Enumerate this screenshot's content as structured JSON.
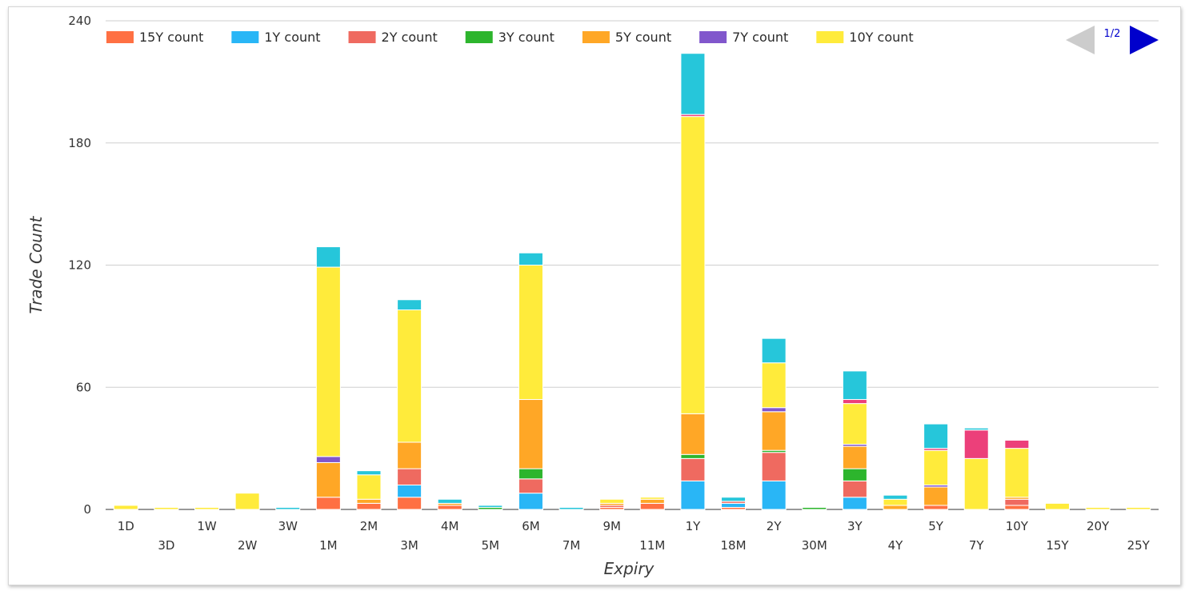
{
  "chart_data": {
    "type": "bar",
    "stacked": true,
    "title": "",
    "xlabel": "Expiry",
    "ylabel": "Trade Count",
    "ylim": [
      0,
      240
    ],
    "yticks": [
      0,
      60,
      120,
      180,
      240
    ],
    "grid": true,
    "legend_position": "top",
    "pager": {
      "label": "1/2",
      "prev_color": "#cccccc",
      "next_color": "#0000cc"
    },
    "categories": [
      "1D",
      "3D",
      "1W",
      "2W",
      "3W",
      "1M",
      "2M",
      "3M",
      "4M",
      "5M",
      "6M",
      "7M",
      "9M",
      "11M",
      "1Y",
      "18M",
      "2Y",
      "30M",
      "3Y",
      "4Y",
      "5Y",
      "7Y",
      "10Y",
      "15Y",
      "20Y",
      "25Y"
    ],
    "series": [
      {
        "name": "15Y count",
        "color": "#ff7043",
        "legend": true,
        "values": [
          0,
          0,
          0,
          0,
          0,
          6,
          3,
          6,
          2,
          0,
          0,
          0,
          1,
          3,
          0,
          1,
          0,
          0,
          0,
          0,
          2,
          0,
          2,
          0,
          0,
          0
        ]
      },
      {
        "name": "1Y count",
        "color": "#29b6f6",
        "legend": true,
        "values": [
          0,
          0,
          0,
          0,
          0,
          0,
          0,
          6,
          0,
          0,
          8,
          0,
          0,
          0,
          14,
          2,
          14,
          0,
          6,
          0,
          0,
          0,
          0,
          0,
          0,
          0
        ]
      },
      {
        "name": "2Y count",
        "color": "#ef6a60",
        "legend": true,
        "values": [
          0,
          0,
          0,
          0,
          0,
          0,
          0,
          8,
          0,
          0,
          7,
          0,
          1,
          0,
          11,
          1,
          14,
          0,
          8,
          0,
          0,
          0,
          3,
          0,
          0,
          0
        ]
      },
      {
        "name": "3Y count",
        "color": "#2db52d",
        "legend": true,
        "values": [
          0,
          0,
          0,
          0,
          0,
          0,
          0,
          0,
          0,
          1,
          5,
          0,
          0,
          0,
          2,
          0,
          1,
          1,
          6,
          0,
          0,
          0,
          0,
          0,
          0,
          0
        ]
      },
      {
        "name": "5Y count",
        "color": "#ffa726",
        "legend": true,
        "values": [
          0,
          0,
          0,
          0,
          0,
          17,
          2,
          13,
          1,
          0,
          34,
          0,
          1,
          2,
          20,
          0,
          19,
          0,
          11,
          2,
          9,
          0,
          1,
          0,
          0,
          0
        ]
      },
      {
        "name": "7Y count",
        "color": "#8157cc",
        "legend": true,
        "values": [
          0,
          0,
          0,
          0,
          0,
          3,
          0,
          0,
          0,
          0,
          0,
          0,
          0,
          0,
          0,
          0,
          2,
          0,
          1,
          0,
          1,
          0,
          0,
          0,
          0,
          0
        ]
      },
      {
        "name": "10Y count",
        "color": "#ffeb3b",
        "legend": true,
        "values": [
          2,
          1,
          1,
          8,
          0,
          93,
          12,
          65,
          0,
          0,
          66,
          0,
          2,
          1,
          146,
          0,
          22,
          0,
          20,
          3,
          17,
          25,
          24,
          3,
          1,
          1
        ]
      },
      {
        "name": "",
        "color": "#ec407a",
        "legend": false,
        "values": [
          0,
          0,
          0,
          0,
          0,
          0,
          0,
          0,
          0,
          0,
          0,
          0,
          0,
          0,
          1,
          0,
          0,
          0,
          2,
          0,
          1,
          14,
          4,
          0,
          0,
          0
        ]
      },
      {
        "name": "",
        "color": "#26c6da",
        "legend": false,
        "values": [
          0,
          0,
          0,
          0,
          1,
          10,
          2,
          5,
          2,
          1,
          6,
          1,
          0,
          0,
          30,
          2,
          12,
          0,
          14,
          2,
          12,
          1,
          0,
          0,
          0,
          0
        ]
      }
    ]
  }
}
